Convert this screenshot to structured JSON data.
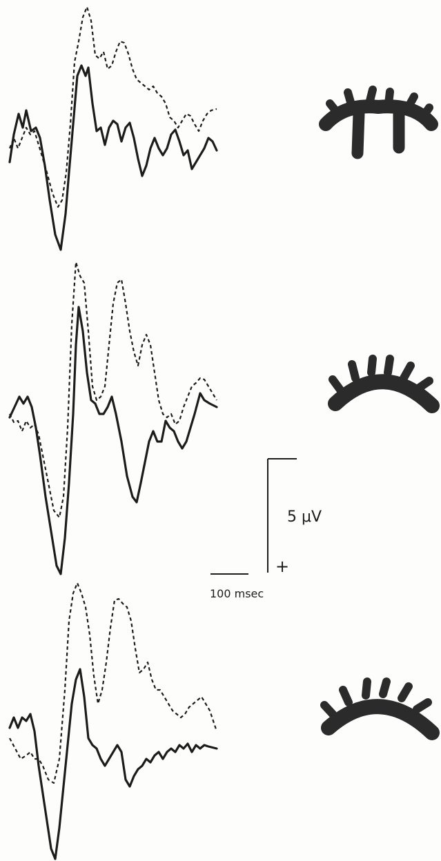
{
  "scale_bar": {
    "amplitude_label": "5 μV",
    "polarity_label": "+",
    "time_label": "100 msec"
  }
}
